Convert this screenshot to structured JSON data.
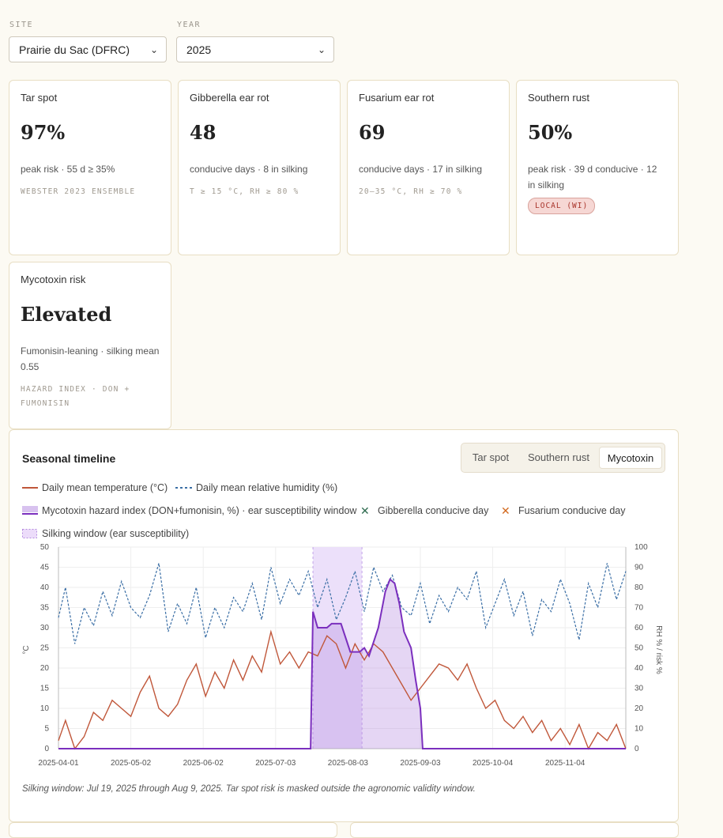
{
  "filters": {
    "site_label": "SITE",
    "site_value": "Prairie du Sac (DFRC)",
    "year_label": "YEAR",
    "year_value": "2025"
  },
  "cards": [
    {
      "title": "Tar spot",
      "value": "97%",
      "desc": "peak risk · 55 d ≥ 35%",
      "foot": "WEBSTER 2023 ENSEMBLE"
    },
    {
      "title": "Gibberella ear rot",
      "value": "48",
      "desc": "conducive days · 8 in silking",
      "foot": "T ≥ 15 °C, RH ≥ 80 %"
    },
    {
      "title": "Fusarium ear rot",
      "value": "69",
      "desc": "conducive days · 17 in silking",
      "foot": "20–35 °C, RH ≥ 70 %"
    },
    {
      "title": "Southern rust",
      "value": "50%",
      "desc": "peak risk · 39 d conducive · 12 in silking",
      "badge": "LOCAL (WI)"
    },
    {
      "title": "Mycotoxin risk",
      "value": "Elevated",
      "desc": "Fumonisin-leaning · silking mean 0.55",
      "foot": "HAZARD INDEX · DON + FUMONISIN"
    }
  ],
  "timeline": {
    "title": "Seasonal timeline",
    "tabs": [
      "Tar spot",
      "Southern rust",
      "Mycotoxin"
    ],
    "active_tab": "Mycotoxin",
    "legend": [
      "Daily mean temperature (°C)",
      "Daily mean relative humidity (%)",
      "Mycotoxin hazard index (DON+fumonisin, %) · ear susceptibility window",
      "Gibberella conducive day",
      "Fusarium conducive day",
      "Silking window (ear susceptibility)"
    ],
    "footnote": "Silking window: Jul 19, 2025 through Aug 9, 2025. Tar spot risk is masked outside the agronomic validity window."
  },
  "chart_data": {
    "type": "line",
    "x_start": "2025-04-01",
    "x_end": "2025-11-30",
    "xticks": [
      "2025-04-01",
      "2025-05-02",
      "2025-06-02",
      "2025-07-03",
      "2025-08-03",
      "2025-09-03",
      "2025-10-04",
      "2025-11-04"
    ],
    "ylabel_left": "°C",
    "ylabel_right": "RH % / risk %",
    "ylim_left": [
      0,
      50
    ],
    "ylim_right": [
      0,
      100
    ],
    "yticks_left": [
      0,
      5,
      10,
      15,
      20,
      25,
      30,
      35,
      40,
      45,
      50
    ],
    "yticks_right": [
      0,
      10,
      20,
      30,
      40,
      50,
      60,
      70,
      80,
      90,
      100
    ],
    "silking_window": [
      "2025-07-19",
      "2025-08-09"
    ],
    "series": [
      {
        "name": "Daily mean temperature (°C)",
        "axis": "left",
        "color": "#c0573a",
        "points": [
          [
            "2025-04-01",
            2
          ],
          [
            "2025-04-04",
            7
          ],
          [
            "2025-04-08",
            0
          ],
          [
            "2025-04-12",
            3
          ],
          [
            "2025-04-16",
            9
          ],
          [
            "2025-04-20",
            7
          ],
          [
            "2025-04-24",
            12
          ],
          [
            "2025-04-28",
            10
          ],
          [
            "2025-05-02",
            8
          ],
          [
            "2025-05-06",
            14
          ],
          [
            "2025-05-10",
            18
          ],
          [
            "2025-05-14",
            10
          ],
          [
            "2025-05-18",
            8
          ],
          [
            "2025-05-22",
            11
          ],
          [
            "2025-05-26",
            17
          ],
          [
            "2025-05-30",
            21
          ],
          [
            "2025-06-03",
            13
          ],
          [
            "2025-06-07",
            19
          ],
          [
            "2025-06-11",
            15
          ],
          [
            "2025-06-15",
            22
          ],
          [
            "2025-06-19",
            17
          ],
          [
            "2025-06-23",
            23
          ],
          [
            "2025-06-27",
            19
          ],
          [
            "2025-07-01",
            29
          ],
          [
            "2025-07-05",
            21
          ],
          [
            "2025-07-09",
            24
          ],
          [
            "2025-07-13",
            20
          ],
          [
            "2025-07-17",
            24
          ],
          [
            "2025-07-21",
            23
          ],
          [
            "2025-07-25",
            28
          ],
          [
            "2025-07-29",
            26
          ],
          [
            "2025-08-02",
            20
          ],
          [
            "2025-08-06",
            26
          ],
          [
            "2025-08-10",
            22
          ],
          [
            "2025-08-14",
            26
          ],
          [
            "2025-08-18",
            24
          ],
          [
            "2025-08-22",
            20
          ],
          [
            "2025-08-26",
            16
          ],
          [
            "2025-08-30",
            12
          ],
          [
            "2025-09-03",
            15
          ],
          [
            "2025-09-07",
            18
          ],
          [
            "2025-09-11",
            21
          ],
          [
            "2025-09-15",
            20
          ],
          [
            "2025-09-19",
            17
          ],
          [
            "2025-09-23",
            21
          ],
          [
            "2025-09-27",
            15
          ],
          [
            "2025-10-01",
            10
          ],
          [
            "2025-10-05",
            12
          ],
          [
            "2025-10-09",
            7
          ],
          [
            "2025-10-13",
            5
          ],
          [
            "2025-10-17",
            8
          ],
          [
            "2025-10-21",
            4
          ],
          [
            "2025-10-25",
            7
          ],
          [
            "2025-10-29",
            2
          ],
          [
            "2025-11-02",
            5
          ],
          [
            "2025-11-06",
            1
          ],
          [
            "2025-11-10",
            6
          ],
          [
            "2025-11-14",
            0
          ],
          [
            "2025-11-18",
            4
          ],
          [
            "2025-11-22",
            2
          ],
          [
            "2025-11-26",
            6
          ],
          [
            "2025-11-30",
            0
          ]
        ]
      },
      {
        "name": "Daily mean relative humidity (%)",
        "axis": "right",
        "color": "#3a6ea5",
        "points": [
          [
            "2025-04-01",
            65
          ],
          [
            "2025-04-04",
            80
          ],
          [
            "2025-04-08",
            52
          ],
          [
            "2025-04-12",
            70
          ],
          [
            "2025-04-16",
            61
          ],
          [
            "2025-04-20",
            78
          ],
          [
            "2025-04-24",
            66
          ],
          [
            "2025-04-28",
            83
          ],
          [
            "2025-05-02",
            70
          ],
          [
            "2025-05-06",
            65
          ],
          [
            "2025-05-10",
            76
          ],
          [
            "2025-05-14",
            92
          ],
          [
            "2025-05-18",
            58
          ],
          [
            "2025-05-22",
            72
          ],
          [
            "2025-05-26",
            62
          ],
          [
            "2025-05-30",
            80
          ],
          [
            "2025-06-03",
            55
          ],
          [
            "2025-06-07",
            70
          ],
          [
            "2025-06-11",
            60
          ],
          [
            "2025-06-15",
            75
          ],
          [
            "2025-06-19",
            68
          ],
          [
            "2025-06-23",
            82
          ],
          [
            "2025-06-27",
            64
          ],
          [
            "2025-07-01",
            90
          ],
          [
            "2025-07-05",
            72
          ],
          [
            "2025-07-09",
            84
          ],
          [
            "2025-07-13",
            76
          ],
          [
            "2025-07-17",
            88
          ],
          [
            "2025-07-21",
            70
          ],
          [
            "2025-07-25",
            84
          ],
          [
            "2025-07-29",
            64
          ],
          [
            "2025-08-02",
            75
          ],
          [
            "2025-08-06",
            88
          ],
          [
            "2025-08-10",
            68
          ],
          [
            "2025-08-14",
            90
          ],
          [
            "2025-08-18",
            78
          ],
          [
            "2025-08-22",
            86
          ],
          [
            "2025-08-26",
            70
          ],
          [
            "2025-08-30",
            66
          ],
          [
            "2025-09-03",
            82
          ],
          [
            "2025-09-07",
            62
          ],
          [
            "2025-09-11",
            76
          ],
          [
            "2025-09-15",
            68
          ],
          [
            "2025-09-19",
            80
          ],
          [
            "2025-09-23",
            74
          ],
          [
            "2025-09-27",
            88
          ],
          [
            "2025-10-01",
            60
          ],
          [
            "2025-10-05",
            72
          ],
          [
            "2025-10-09",
            84
          ],
          [
            "2025-10-13",
            66
          ],
          [
            "2025-10-17",
            78
          ],
          [
            "2025-10-21",
            56
          ],
          [
            "2025-10-25",
            74
          ],
          [
            "2025-10-29",
            68
          ],
          [
            "2025-11-02",
            84
          ],
          [
            "2025-11-06",
            72
          ],
          [
            "2025-11-10",
            54
          ],
          [
            "2025-11-14",
            82
          ],
          [
            "2025-11-18",
            70
          ],
          [
            "2025-11-22",
            92
          ],
          [
            "2025-11-26",
            74
          ],
          [
            "2025-11-30",
            88
          ]
        ]
      },
      {
        "name": "Mycotoxin hazard index (DON+fumonisin, %)",
        "axis": "right",
        "color": "#7b2fbe",
        "points": [
          [
            "2025-04-01",
            0
          ],
          [
            "2025-07-18",
            0
          ],
          [
            "2025-07-19",
            68
          ],
          [
            "2025-07-21",
            60
          ],
          [
            "2025-07-25",
            60
          ],
          [
            "2025-07-27",
            62
          ],
          [
            "2025-07-31",
            62
          ],
          [
            "2025-08-02",
            55
          ],
          [
            "2025-08-04",
            48
          ],
          [
            "2025-08-08",
            48
          ],
          [
            "2025-08-10",
            50
          ],
          [
            "2025-08-12",
            46
          ],
          [
            "2025-08-16",
            60
          ],
          [
            "2025-08-19",
            78
          ],
          [
            "2025-08-21",
            84
          ],
          [
            "2025-08-23",
            82
          ],
          [
            "2025-08-25",
            72
          ],
          [
            "2025-08-27",
            58
          ],
          [
            "2025-08-30",
            50
          ],
          [
            "2025-09-01",
            34
          ],
          [
            "2025-09-03",
            20
          ],
          [
            "2025-09-04",
            0
          ],
          [
            "2025-11-30",
            0
          ]
        ]
      }
    ]
  }
}
